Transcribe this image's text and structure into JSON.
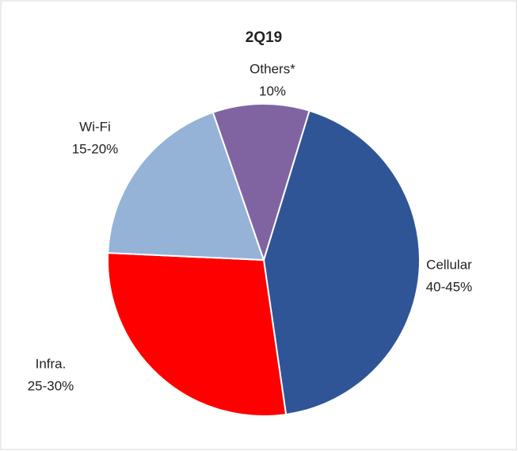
{
  "chart_data": {
    "type": "pie",
    "title": "2Q19",
    "categories": [
      "Cellular",
      "Infra.",
      "Wi-Fi",
      "Others*"
    ],
    "values": [
      43,
      28,
      19,
      10
    ],
    "value_labels": [
      "40-45%",
      "25-30%",
      "15-20%",
      "10%"
    ],
    "colors": [
      "#2f5597",
      "#ff0000",
      "#95b3d7",
      "#8064a2"
    ]
  }
}
